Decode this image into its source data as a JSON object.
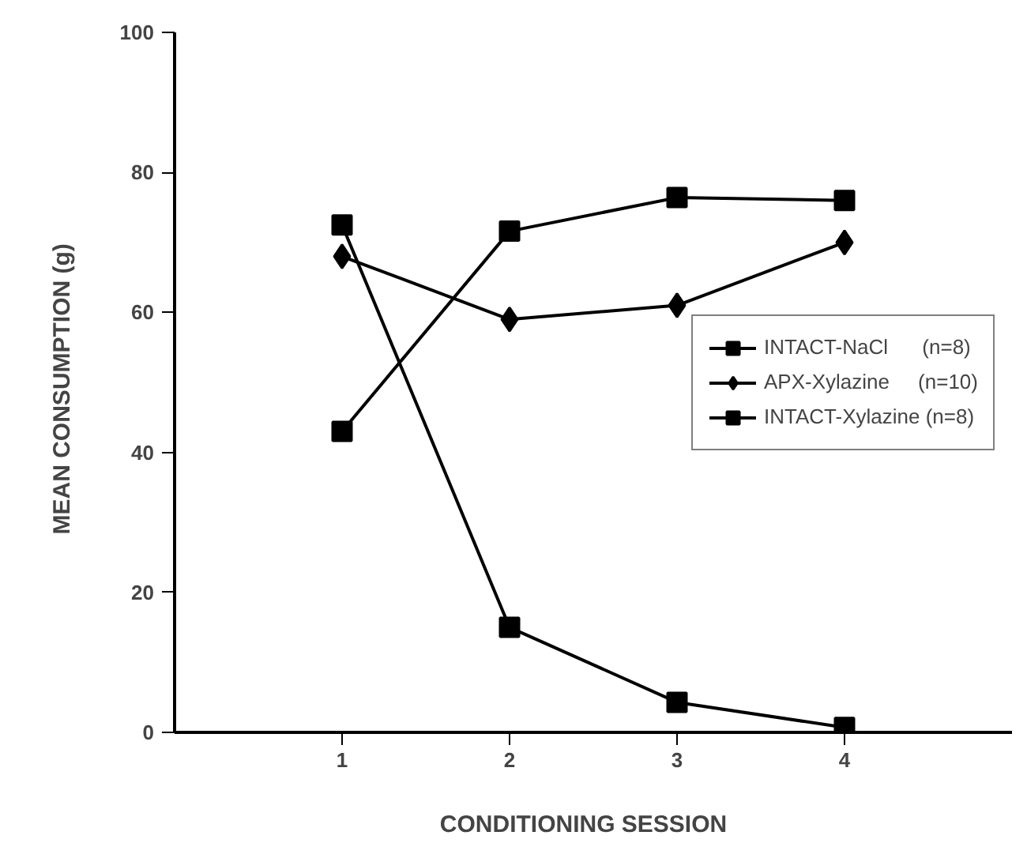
{
  "chart_data": {
    "type": "line",
    "xlabel": "CONDITIONING    SESSION",
    "ylabel": "MEAN CONSUMPTION   (g)",
    "x": [
      1,
      2,
      3,
      4
    ],
    "xlim": [
      0,
      5
    ],
    "xticks": [
      1,
      2,
      3,
      4
    ],
    "ylim": [
      0,
      100
    ],
    "yticks": [
      0,
      20,
      40,
      60,
      80,
      100
    ],
    "grid": false,
    "legend": "right",
    "series": [
      {
        "name": "INTACT-NaCl      (n=8)",
        "color": "#000000",
        "marker": "square",
        "values": [
          43,
          71.6,
          76.4,
          76
        ]
      },
      {
        "name": "APX-Xylazine     (n=10)",
        "color": "#000000",
        "marker": "diamond",
        "values": [
          68,
          59,
          61,
          70
        ]
      },
      {
        "name": "INTACT-Xylazine (n=8)",
        "color": "#000000",
        "marker": "square",
        "values": [
          72.5,
          15,
          4.3,
          0.7
        ]
      }
    ]
  }
}
